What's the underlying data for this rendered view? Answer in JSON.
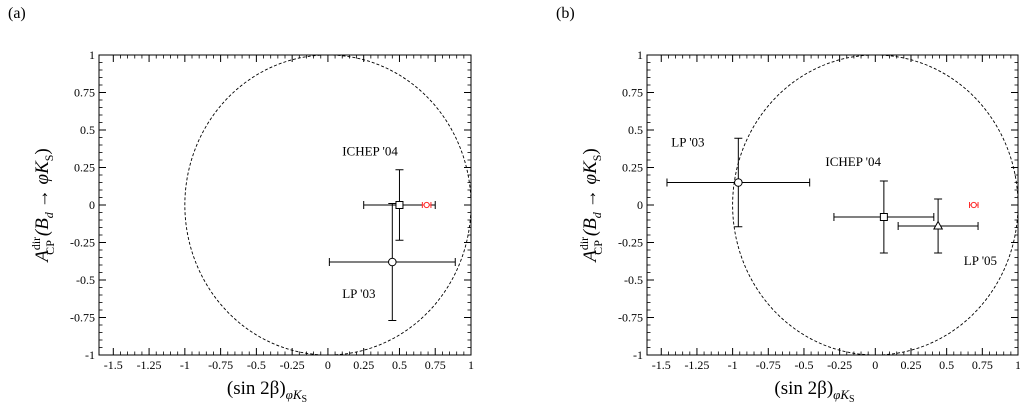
{
  "chart_data": [
    {
      "type": "scatter",
      "panel_label": "(a)",
      "xlabel_main": "(sin 2β)",
      "xlabel_sub": "φK",
      "xlabel_subsub": "S",
      "ylabel_main": "A",
      "ylabel_sup": "dir",
      "ylabel_sub": "CP",
      "ylabel_tail": "(B",
      "ylabel_tail_sub": "d",
      "ylabel_arrow": "→ φK",
      "ylabel_arrow_sub": "S",
      "ylabel_close": ")",
      "xlim": [
        -1.6,
        1.0
      ],
      "ylim": [
        -1.0,
        1.0
      ],
      "xticks": [
        "-1.5",
        "-1.25",
        "-1",
        "-0.75",
        "-0.5",
        "-0.25",
        "0",
        "0.25",
        "0.5",
        "0.75",
        "1"
      ],
      "xtick_values": [
        -1.5,
        -1.25,
        -1,
        -0.75,
        -0.5,
        -0.25,
        0,
        0.25,
        0.5,
        0.75,
        1
      ],
      "yticks": [
        "1",
        "0.75",
        "0.5",
        "0.25",
        "0",
        "-0.25",
        "-0.5",
        "-0.75",
        "-1"
      ],
      "ytick_values": [
        1,
        0.75,
        0.5,
        0.25,
        0,
        -0.25,
        -0.5,
        -0.75,
        -1
      ],
      "unit_circle": true,
      "points": [
        {
          "label": "ICHEP '04",
          "marker": "square",
          "x": 0.5,
          "xerr": 0.25,
          "y": 0.0,
          "yerr": 0.235,
          "label_x": 0.1,
          "label_y": 0.33
        },
        {
          "label": "LP '03",
          "marker": "circle",
          "x": 0.45,
          "xerr": 0.44,
          "y": -0.38,
          "yerr": 0.39,
          "label_x": 0.1,
          "label_y": -0.62
        }
      ],
      "reference": {
        "x": 0.69,
        "xerr": 0.03,
        "y": 0.0,
        "color": "#ff2a2a"
      }
    },
    {
      "type": "scatter",
      "panel_label": "(b)",
      "xlabel_main": "(sin 2β)",
      "xlabel_sub": "φK",
      "xlabel_subsub": "S",
      "ylabel_main": "A",
      "ylabel_sup": "dir",
      "ylabel_sub": "CP",
      "ylabel_tail": "(B",
      "ylabel_tail_sub": "d",
      "ylabel_arrow": "→ φK",
      "ylabel_arrow_sub": "S",
      "ylabel_close": ")",
      "xlim": [
        -1.6,
        1.0
      ],
      "ylim": [
        -1.0,
        1.0
      ],
      "xticks": [
        "-1.5",
        "-1.25",
        "-1",
        "-0.75",
        "-0.5",
        "-0.25",
        "0",
        "0.25",
        "0.5",
        "0.75",
        "1"
      ],
      "xtick_values": [
        -1.5,
        -1.25,
        -1,
        -0.75,
        -0.5,
        -0.25,
        0,
        0.25,
        0.5,
        0.75,
        1
      ],
      "yticks": [
        "1",
        "0.75",
        "0.5",
        "0.25",
        "0",
        "-0.25",
        "-0.5",
        "-0.75",
        "-1"
      ],
      "ytick_values": [
        1,
        0.75,
        0.5,
        0.25,
        0,
        -0.25,
        -0.5,
        -0.75,
        -1
      ],
      "unit_circle": true,
      "points": [
        {
          "label": "LP '03",
          "marker": "circle",
          "x": -0.96,
          "xerr": 0.5,
          "y": 0.15,
          "yerr": 0.295,
          "label_x": -1.43,
          "label_y": 0.39
        },
        {
          "label": "ICHEP '04",
          "marker": "square",
          "x": 0.06,
          "xerr": 0.35,
          "y": -0.08,
          "yerr": 0.24,
          "label_x": -0.35,
          "label_y": 0.26
        },
        {
          "label": "LP '05",
          "marker": "triangle",
          "x": 0.44,
          "xerr": 0.28,
          "y": -0.14,
          "yerr": 0.18,
          "label_x": 0.62,
          "label_y": -0.4
        }
      ],
      "reference": {
        "x": 0.69,
        "xerr": 0.03,
        "y": 0.0,
        "color": "#ff2a2a"
      }
    }
  ]
}
